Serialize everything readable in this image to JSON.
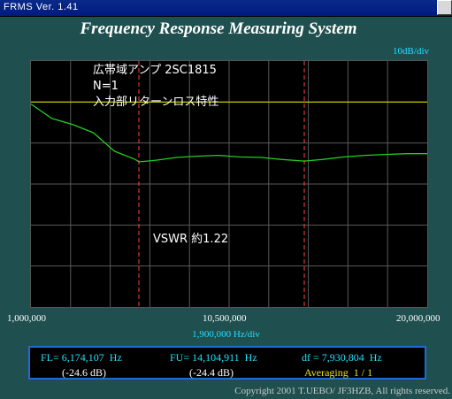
{
  "window": {
    "title": "FRMS   Ver. 1.41"
  },
  "app_title": "Frequency Response Measuring System",
  "y_scale": "10dB/div",
  "annotations": {
    "line1": "広帯域アンプ 2SC1815",
    "line2": "N=1",
    "line3": "入力部リターンロス特性",
    "vswr": "VSWR 約1.22"
  },
  "x_axis": {
    "min_label": "1,000,000",
    "mid_label": "10,500,000",
    "max_label": "20,000,000",
    "per_div": "1,900,000  Hz/div"
  },
  "readout": {
    "fl": "FL= 6,174,107  Hz",
    "fl_db": "(-24.6 dB)",
    "fu": "FU= 14,104,911  Hz",
    "fu_db": "(-24.4 dB)",
    "df": "df = 7,930,804  Hz",
    "averaging": "Averaging  1 / 1"
  },
  "copyright": "Copyright 2001 T.UEBO/ JF3HZB, All rights reserved.",
  "colors": {
    "trace": "#22cc22",
    "ref_line": "#d6d600",
    "marker": "#ff4040",
    "grid": "#5a5a5a",
    "cyan": "#22e0ff"
  },
  "chart_data": {
    "type": "line",
    "x": [
      1.0,
      2.0,
      3.0,
      4.0,
      5.0,
      6.0,
      6.17,
      7.0,
      8.0,
      9.0,
      10.0,
      11.0,
      12.0,
      13.0,
      14.1,
      15.0,
      16.0,
      17.0,
      18.0,
      19.0,
      20.0
    ],
    "y": [
      -10.5,
      -14.0,
      -15.5,
      -17.5,
      -22.0,
      -24.0,
      -24.6,
      -24.2,
      -23.5,
      -23.2,
      -23.0,
      -23.4,
      -23.5,
      -24.0,
      -24.4,
      -24.0,
      -23.4,
      -23.0,
      -22.8,
      -22.6,
      -22.6
    ],
    "x_range": [
      1.0,
      20.0
    ],
    "y_range": [
      -60,
      0
    ],
    "reference_level": -10,
    "markers": [
      6.174107,
      14.104911
    ]
  }
}
